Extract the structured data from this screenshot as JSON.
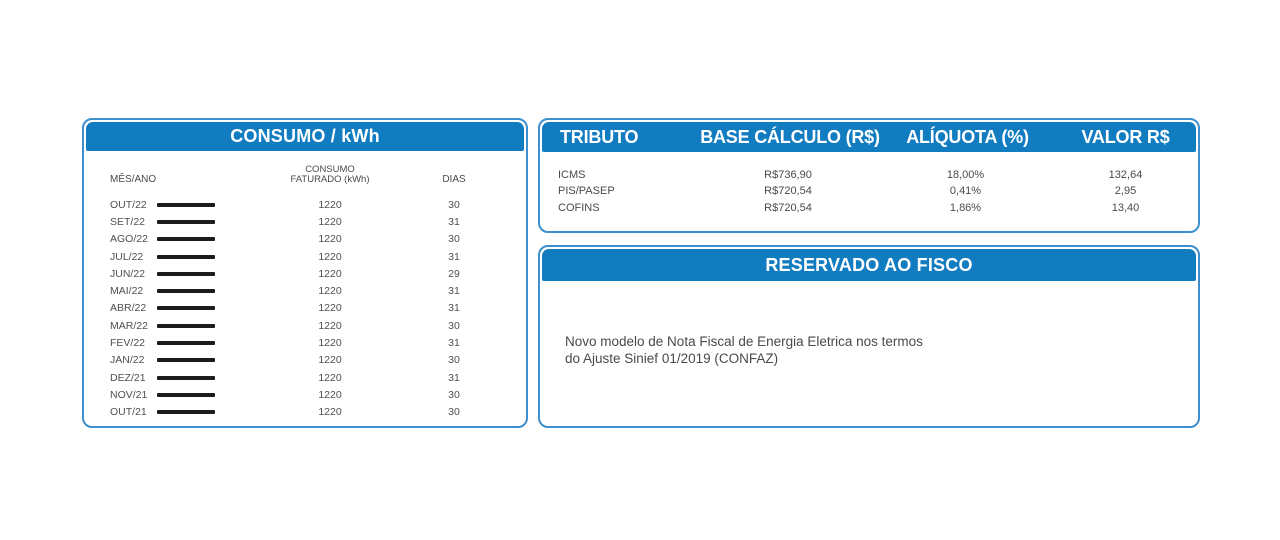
{
  "colors": {
    "header_bg": "#127CC1",
    "panel_border": "#3E8FCE",
    "bar": "#1C1C1C"
  },
  "consumo": {
    "title": "CONSUMO / kWh",
    "col_mes": "MÊS/ANO",
    "col_consumo_l1": "CONSUMO",
    "col_consumo_l2": "FATURADO (kWh)",
    "col_dias": "DIAS",
    "rows": [
      {
        "month": "OUT/22",
        "kwh": "1220",
        "dias": "30"
      },
      {
        "month": "SET/22",
        "kwh": "1220",
        "dias": "31"
      },
      {
        "month": "AGO/22",
        "kwh": "1220",
        "dias": "30"
      },
      {
        "month": "JUL/22",
        "kwh": "1220",
        "dias": "31"
      },
      {
        "month": "JUN/22",
        "kwh": "1220",
        "dias": "29"
      },
      {
        "month": "MAI/22",
        "kwh": "1220",
        "dias": "31"
      },
      {
        "month": "ABR/22",
        "kwh": "1220",
        "dias": "31"
      },
      {
        "month": "MAR/22",
        "kwh": "1220",
        "dias": "30"
      },
      {
        "month": "FEV/22",
        "kwh": "1220",
        "dias": "31"
      },
      {
        "month": "JAN/22",
        "kwh": "1220",
        "dias": "30"
      },
      {
        "month": "DEZ/21",
        "kwh": "1220",
        "dias": "31"
      },
      {
        "month": "NOV/21",
        "kwh": "1220",
        "dias": "30"
      },
      {
        "month": "OUT/21",
        "kwh": "1220",
        "dias": "30"
      }
    ]
  },
  "tributos": {
    "col_tributo": "TRIBUTO",
    "col_base": "BASE CÁLCULO (R$)",
    "col_aliquota": "ALÍQUOTA (%)",
    "col_valor": "VALOR R$",
    "rows": [
      {
        "tributo": "ICMS",
        "base": "R$736,90",
        "aliquota": "18,00%",
        "valor": "132,64"
      },
      {
        "tributo": "PIS/PASEP",
        "base": "R$720,54",
        "aliquota": "0,41%",
        "valor": "2,95"
      },
      {
        "tributo": "COFINS",
        "base": "R$720,54",
        "aliquota": "1,86%",
        "valor": "13,40"
      }
    ]
  },
  "fisco": {
    "title": "RESERVADO AO FISCO",
    "line1": "Novo modelo de Nota Fiscal de Energia Eletrica nos termos",
    "line2": "do Ajuste Sinief 01/2019 (CONFAZ)"
  }
}
